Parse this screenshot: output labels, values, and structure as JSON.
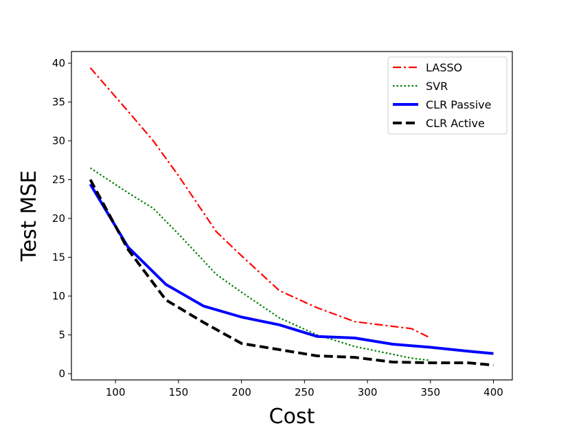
{
  "chart_data": {
    "type": "line",
    "title": "",
    "xlabel": "Cost",
    "ylabel": "Test MSE",
    "xlim": [
      65,
      415
    ],
    "ylim": [
      -0.8,
      41.5
    ],
    "xticks": [
      100,
      150,
      200,
      250,
      300,
      350,
      400
    ],
    "yticks": [
      0,
      5,
      10,
      15,
      20,
      25,
      30,
      35,
      40
    ],
    "grid": false,
    "legend_position": "top-right",
    "series": [
      {
        "name": "LASSO",
        "color": "#ff0000",
        "style": "dash-dot",
        "x": [
          80,
          110,
          130,
          150,
          180,
          200,
          230,
          260,
          290,
          320,
          335,
          350
        ],
        "y": [
          39.4,
          33.8,
          30.0,
          25.5,
          18.3,
          15.2,
          10.7,
          8.5,
          6.7,
          6.1,
          5.8,
          4.6
        ]
      },
      {
        "name": "SVR",
        "color": "#008000",
        "style": "dotted",
        "x": [
          80,
          110,
          130,
          150,
          180,
          200,
          230,
          260,
          290,
          320,
          335,
          350
        ],
        "y": [
          26.5,
          23.3,
          21.3,
          18.0,
          12.8,
          10.5,
          7.2,
          5.0,
          3.5,
          2.5,
          2.0,
          1.7
        ]
      },
      {
        "name": "CLR Passive",
        "color": "#0000ff",
        "style": "solid",
        "x": [
          80,
          110,
          140,
          170,
          200,
          230,
          260,
          290,
          320,
          350,
          380,
          400
        ],
        "y": [
          24.4,
          16.3,
          11.5,
          8.7,
          7.3,
          6.3,
          4.8,
          4.6,
          3.8,
          3.4,
          2.9,
          2.6
        ]
      },
      {
        "name": "CLR Active",
        "color": "#000000",
        "style": "dashed",
        "x": [
          80,
          110,
          140,
          170,
          200,
          230,
          260,
          290,
          320,
          350,
          380,
          400
        ],
        "y": [
          25.0,
          16.0,
          9.5,
          6.6,
          3.9,
          3.1,
          2.3,
          2.1,
          1.5,
          1.4,
          1.4,
          1.1
        ]
      }
    ]
  }
}
